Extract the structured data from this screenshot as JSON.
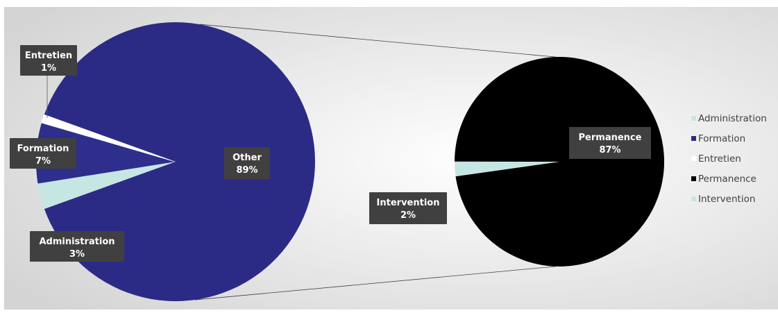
{
  "chart_data": {
    "type": "pie",
    "pies": [
      {
        "id": "main",
        "slices": [
          {
            "name": "Administration",
            "value": 3,
            "label": "Administration",
            "pct": "3%",
            "color": "#c6e6e3"
          },
          {
            "name": "Formation",
            "value": 7,
            "label": "Formation",
            "pct": "7%",
            "color": "#2e2e8c"
          },
          {
            "name": "Entretien",
            "value": 1,
            "label": "Entretien",
            "pct": "1%",
            "color": "#ffffff"
          },
          {
            "name": "Other",
            "value": 89,
            "label": "Other",
            "pct": "89%",
            "color": "#2b2b86"
          }
        ]
      },
      {
        "id": "secondary",
        "slices": [
          {
            "name": "Permanence",
            "value": 87,
            "label": "Permanence",
            "pct": "87%",
            "color": "#000000"
          },
          {
            "name": "Intervention",
            "value": 2,
            "label": "Intervention",
            "pct": "2%",
            "color": "#c6e6e3"
          }
        ]
      }
    ],
    "legend": {
      "placement": "right",
      "entries": [
        {
          "name": "Administration",
          "color": "#c6e6e3"
        },
        {
          "name": "Formation",
          "color": "#2b2b86"
        },
        {
          "name": "Entretien",
          "color": "#ffffff"
        },
        {
          "name": "Permanence",
          "color": "#000000"
        },
        {
          "name": "Intervention",
          "color": "#c6e6e3"
        }
      ]
    },
    "label_color": "#404040",
    "background": [
      "#ffffff",
      "#d9d9d9"
    ]
  }
}
